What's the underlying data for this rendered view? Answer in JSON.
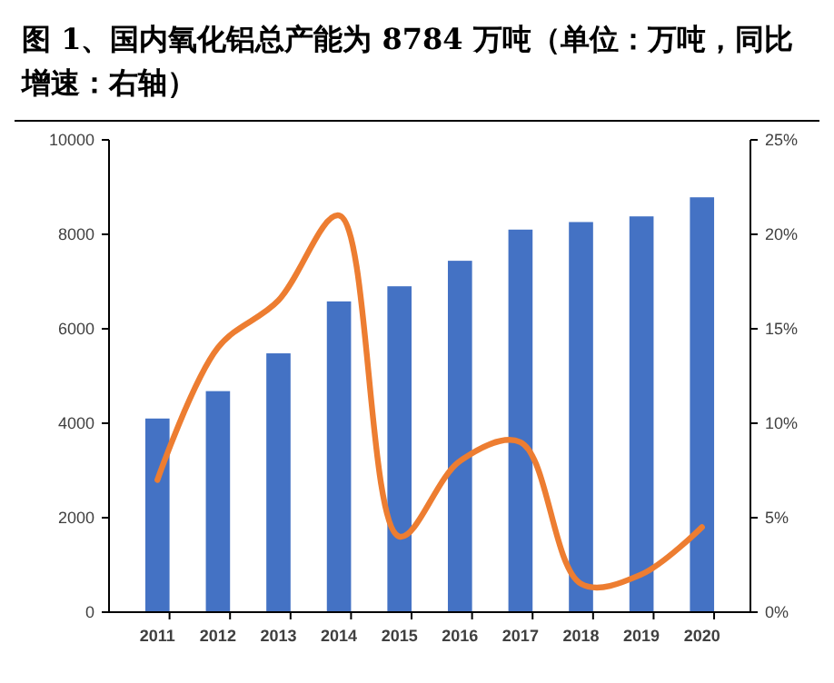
{
  "chart_data": {
    "type": "bar",
    "title": "图 1、国内氧化铝总产能为 8784 万吨（单位：万吨，同比增速：右轴）",
    "categories": [
      "2011",
      "2012",
      "2013",
      "2014",
      "2015",
      "2016",
      "2017",
      "2018",
      "2019",
      "2020"
    ],
    "series": [
      {
        "color": "#4472c4",
        "values": [
          4100,
          4680,
          5480,
          6580,
          6900,
          7440,
          8100,
          8260,
          8380,
          8784
        ]
      },
      {
        "type": "line",
        "axis": "y2",
        "color": "#ed7d31",
        "values": [
          7,
          14,
          16.5,
          21,
          4,
          8,
          9,
          1.5,
          2,
          4.5
        ]
      }
    ],
    "ylim": [
      0,
      10000
    ],
    "yticks": [
      0,
      2000,
      4000,
      6000,
      8000,
      10000
    ],
    "y2lim": [
      0,
      25
    ],
    "y2ticks": [
      {
        "value": 0,
        "label": "0%"
      },
      {
        "value": 5,
        "label": "5%"
      },
      {
        "value": 10,
        "label": "10%"
      },
      {
        "value": 15,
        "label": "15%"
      },
      {
        "value": 20,
        "label": "20%"
      },
      {
        "value": 25,
        "label": "25%"
      }
    ],
    "grid": false
  }
}
